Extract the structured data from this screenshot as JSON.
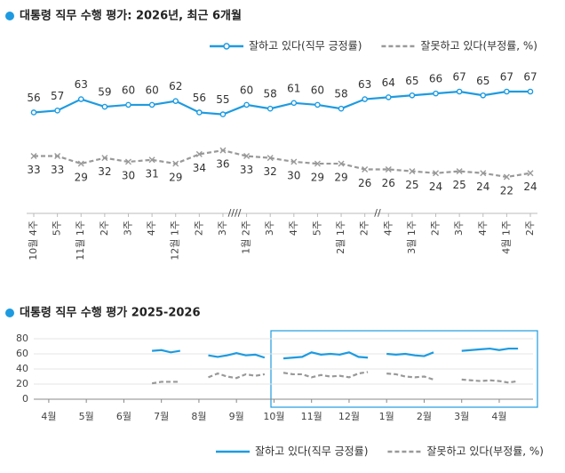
{
  "chart_data": [
    {
      "type": "line",
      "title": "대통령 직무 수행 평가: 2026년, 최근 6개월",
      "legend": "top-right",
      "categories": [
        "10월 4주",
        "5주",
        "11월 1주",
        "2주",
        "3주",
        "4주",
        "12월 1주",
        "2주",
        "3주",
        "1월 2주",
        "3주",
        "4주",
        "5주",
        "2월 1주",
        "2주",
        "4주",
        "3월 1주",
        "2주",
        "3주",
        "4주",
        "4월 1주",
        "2주"
      ],
      "series": [
        {
          "name": "잘하고 있다(직무 긍정률)",
          "color": "#1e9be0",
          "marker": "circle",
          "values": [
            56,
            57,
            63,
            59,
            60,
            60,
            62,
            56,
            55,
            60,
            58,
            61,
            60,
            58,
            63,
            64,
            65,
            66,
            67,
            65,
            67,
            67
          ]
        },
        {
          "name": "잘못하고 있다(부정률, %)",
          "color": "#999999",
          "marker": "x",
          "dash": true,
          "values": [
            33,
            33,
            29,
            32,
            30,
            31,
            29,
            34,
            36,
            33,
            32,
            30,
            29,
            29,
            26,
            26,
            25,
            24,
            25,
            24,
            22,
            24
          ]
        }
      ]
    },
    {
      "type": "line",
      "title": "대통령 직무 수행 평가 2025-2026",
      "legend": "bottom-right",
      "grid": true,
      "ylim": [
        0,
        80
      ],
      "yticks": [
        0,
        20,
        40,
        60,
        80
      ],
      "xlim": [
        -0.4,
        12.9
      ],
      "xticks": [
        {
          "value": 0,
          "label": "4월"
        },
        {
          "value": 1,
          "label": "5월"
        },
        {
          "value": 2,
          "label": "6월"
        },
        {
          "value": 3,
          "label": "7월"
        },
        {
          "value": 4,
          "label": "8월"
        },
        {
          "value": 5,
          "label": "9월"
        },
        {
          "value": 6,
          "label": "10월"
        },
        {
          "value": 7,
          "label": "11월"
        },
        {
          "value": 8,
          "label": "12월"
        },
        {
          "value": 9,
          "label": "1월"
        },
        {
          "value": 10,
          "label": "2월"
        },
        {
          "value": 11,
          "label": "3월"
        },
        {
          "value": 12,
          "label": "4월"
        }
      ],
      "x": [
        2.75,
        3,
        3.25,
        3.5,
        4,
        4.25,
        4.5,
        4.75,
        5,
        5.25,
        5.5,
        5.75,
        6,
        6.25,
        6.5,
        6.75,
        7,
        7.25,
        7.5,
        7.75,
        8,
        8.25,
        8.5,
        8.75,
        9,
        9.25,
        9.5,
        9.75,
        10,
        10.25,
        10.5,
        11,
        11.25,
        11.5,
        11.75,
        12,
        12.25,
        12.5
      ],
      "series": [
        {
          "name": "잘하고 있다(직무 긍정률)",
          "color": "#1e9be0",
          "values": [
            64,
            65,
            62,
            64,
            null,
            58,
            56,
            58,
            61,
            58,
            59,
            55,
            null,
            54,
            55,
            56,
            62,
            59,
            60,
            59,
            62,
            56,
            55,
            null,
            60,
            59,
            60,
            58,
            57,
            62,
            null,
            64,
            65,
            66,
            67,
            65,
            67,
            67
          ]
        },
        {
          "name": "잘못하고 있다(부정률, %)",
          "color": "#999999",
          "dash": true,
          "values": [
            21,
            23,
            23,
            23,
            null,
            29,
            34,
            30,
            28,
            33,
            31,
            33,
            null,
            35,
            33,
            33,
            29,
            32,
            30,
            31,
            29,
            34,
            36,
            null,
            34,
            33,
            30,
            29,
            30,
            26,
            null,
            26,
            25,
            24,
            25,
            24,
            22,
            24
          ]
        }
      ]
    }
  ]
}
